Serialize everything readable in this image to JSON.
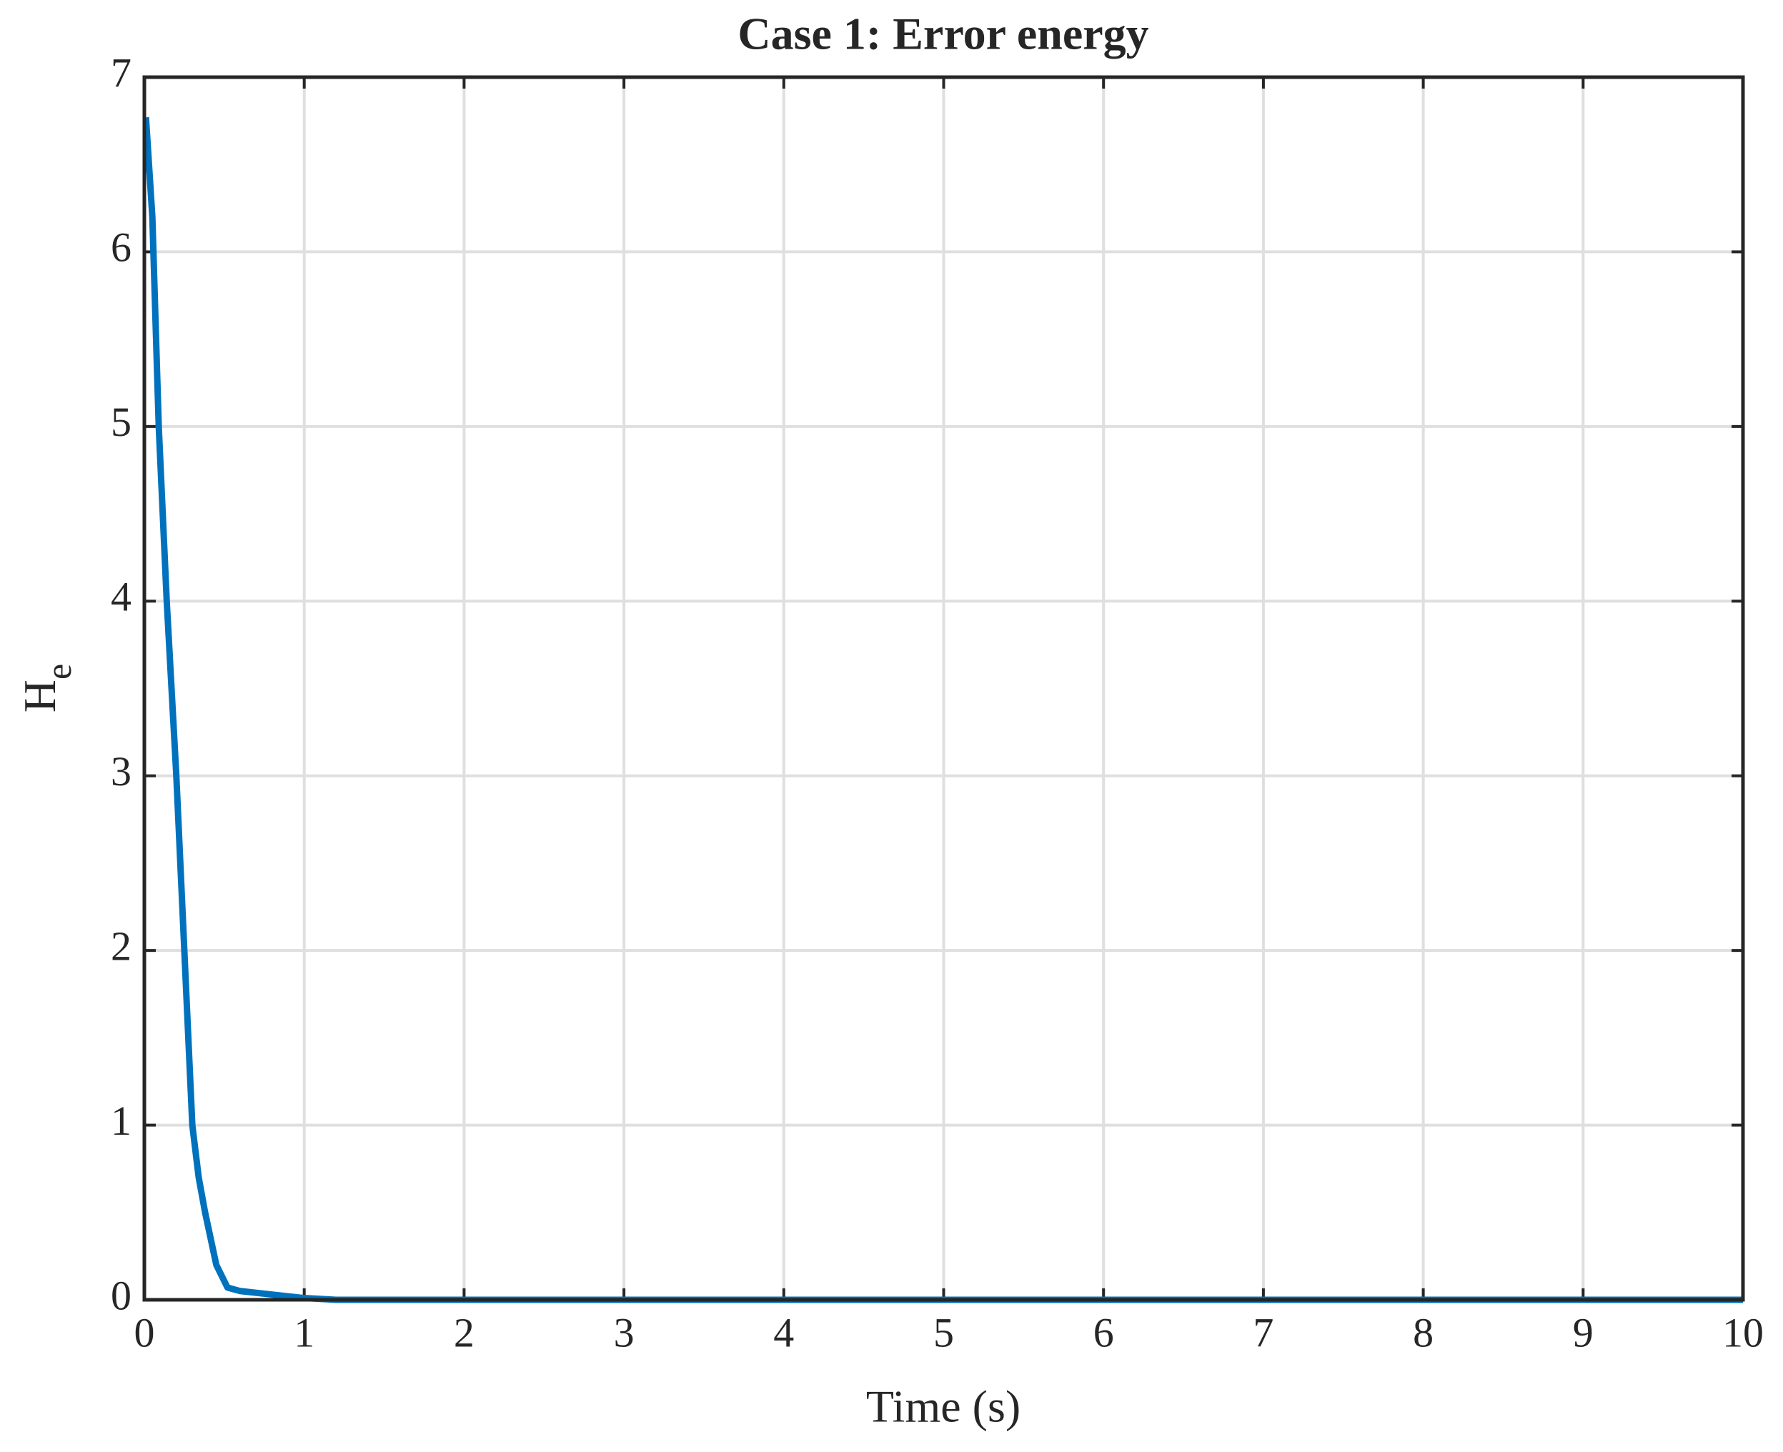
{
  "chart_data": {
    "type": "line",
    "title": "Case 1: Error energy",
    "xlabel": "Time (s)",
    "ylabel": "H",
    "ylabel_subscript": "e",
    "xlim": [
      0,
      10
    ],
    "ylim": [
      0,
      7
    ],
    "xticks": [
      0,
      1,
      2,
      3,
      4,
      5,
      6,
      7,
      8,
      9,
      10
    ],
    "yticks": [
      0,
      1,
      2,
      3,
      4,
      5,
      6,
      7
    ],
    "grid": true,
    "series": [
      {
        "name": "H_e",
        "color": "#0072bd",
        "x": [
          0.01,
          0.05,
          0.09,
          0.14,
          0.2,
          0.25,
          0.3,
          0.34,
          0.38,
          0.45,
          0.52,
          0.6,
          0.8,
          1.0,
          1.2,
          2,
          4,
          6,
          8,
          10
        ],
        "values": [
          6.77,
          6.2,
          5.0,
          4.0,
          3.0,
          2.0,
          1.0,
          0.7,
          0.5,
          0.2,
          0.07,
          0.05,
          0.03,
          0.01,
          0.0,
          0.0,
          0.0,
          0.0,
          0.0,
          0.0
        ]
      }
    ]
  }
}
